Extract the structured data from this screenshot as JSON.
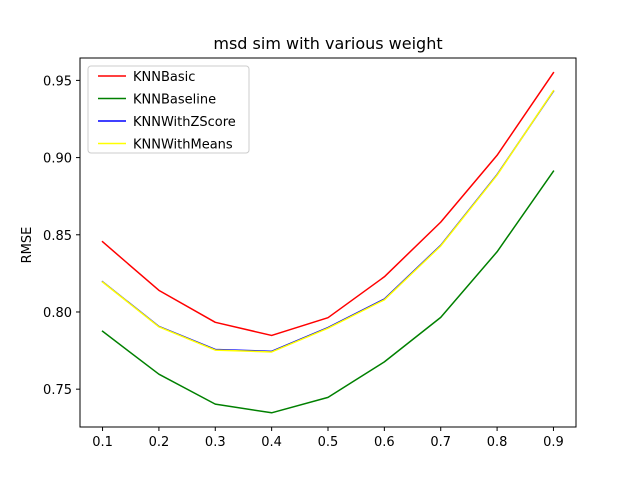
{
  "chart_data": {
    "type": "line",
    "title": "msd sim with various weight",
    "xlabel": "",
    "ylabel": "RMSE",
    "x": [
      0.1,
      0.2,
      0.3,
      0.4,
      0.5,
      0.6,
      0.7,
      0.8,
      0.9
    ],
    "x_ticks": [
      "0.1",
      "0.2",
      "0.3",
      "0.4",
      "0.5",
      "0.6",
      "0.7",
      "0.8",
      "0.9"
    ],
    "y_ticks": [
      "0.75",
      "0.80",
      "0.85",
      "0.90",
      "0.95"
    ],
    "y_tick_values": [
      0.75,
      0.8,
      0.85,
      0.9,
      0.95
    ],
    "xlim": [
      0.06,
      0.94
    ],
    "ylim": [
      0.7255,
      0.9645
    ],
    "grid": false,
    "legend_position": "top-left",
    "series": [
      {
        "name": "KNNBasic",
        "color": "#ff0000",
        "values": [
          0.8455,
          0.814,
          0.7933,
          0.7848,
          0.7963,
          0.8228,
          0.8582,
          0.9015,
          0.955
        ]
      },
      {
        "name": "KNNBaseline",
        "color": "#008000",
        "values": [
          0.7875,
          0.7597,
          0.7403,
          0.7347,
          0.7447,
          0.7677,
          0.7965,
          0.839,
          0.8912
        ]
      },
      {
        "name": "KNNWithZScore",
        "color": "#0000ff",
        "values": [
          0.8196,
          0.7906,
          0.7757,
          0.7745,
          0.7899,
          0.8084,
          0.8432,
          0.889,
          0.943
        ]
      },
      {
        "name": "KNNWithMeans",
        "color": "#ffff00",
        "values": [
          0.8194,
          0.7904,
          0.7753,
          0.7741,
          0.7895,
          0.8079,
          0.8428,
          0.8887,
          0.9433
        ]
      }
    ]
  }
}
